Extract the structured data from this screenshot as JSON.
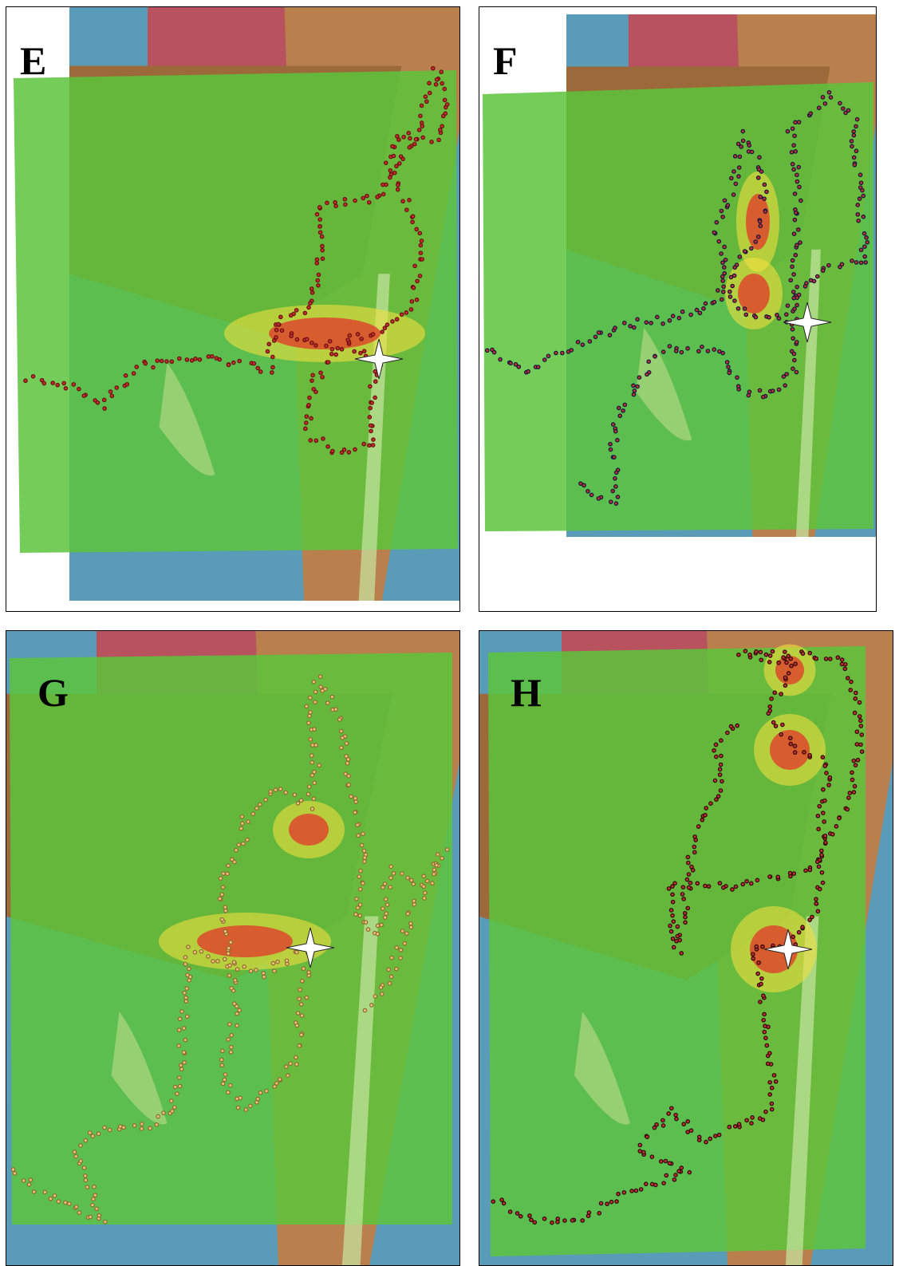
{
  "panels": [
    {
      "label": "E"
    },
    {
      "label": "F"
    },
    {
      "label": "G"
    },
    {
      "label": "H"
    }
  ]
}
